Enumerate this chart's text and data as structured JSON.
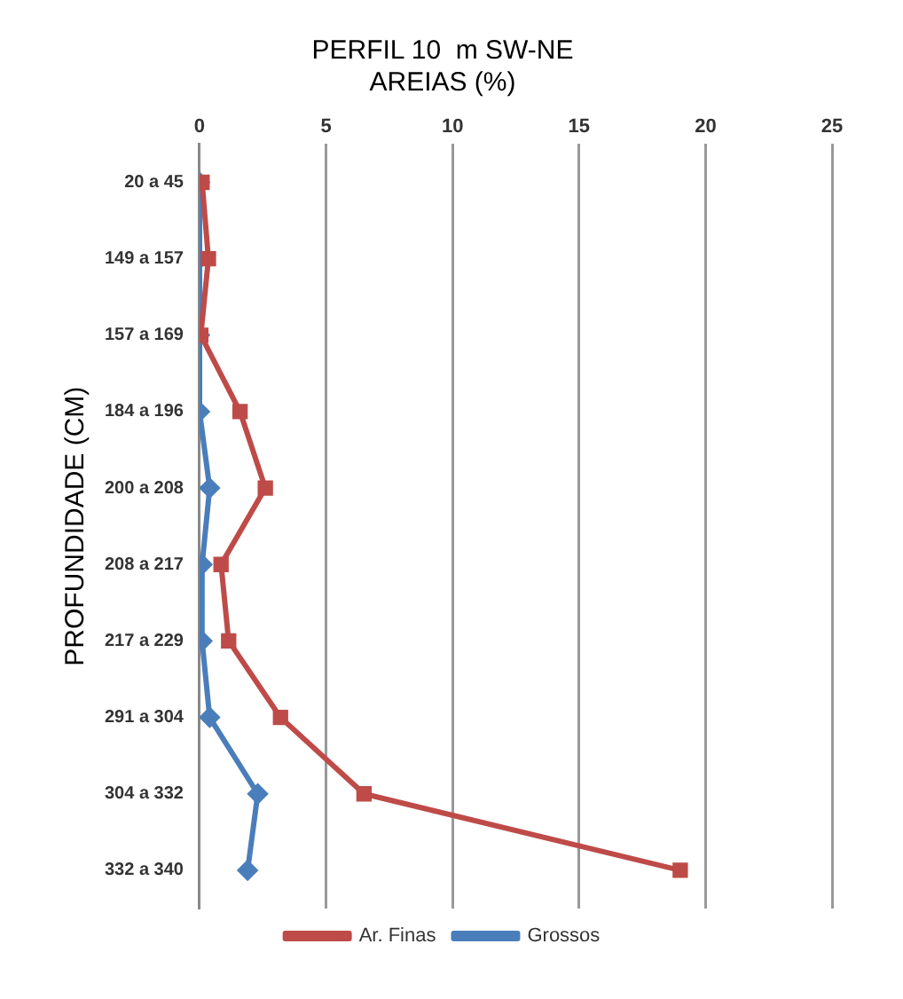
{
  "chart_data": {
    "type": "line",
    "orientation": "horizontal",
    "title": "PERFIL 10  m SW-NE",
    "subtitle": "AREIAS (%)",
    "ylabel": "PROFUNDIDADE (CM)",
    "categories": [
      "20 a 45",
      "149 a 157",
      "157 a 169",
      "184 a 196",
      "200 a 208",
      "208 a 217",
      "217 a 229",
      "291 a 304",
      "304 a 332",
      "332 a 340"
    ],
    "series": [
      {
        "name": "Grossos",
        "color": "#4a7ebb",
        "marker": "diamond",
        "values": [
          0,
          0,
          0,
          0,
          0.4,
          0.1,
          0.1,
          0.4,
          2.3,
          1.9
        ]
      },
      {
        "name": "Ar. Finas",
        "color": "#be4b48",
        "marker": "square",
        "values": [
          0.1,
          0.35,
          0.05,
          1.6,
          2.6,
          0.85,
          1.15,
          3.2,
          6.5,
          19.0
        ]
      }
    ],
    "xlim": [
      0,
      25
    ],
    "xticks": [
      0,
      5,
      10,
      15,
      20,
      25
    ],
    "grid": "x",
    "legend": "bottom",
    "line_style": "solid"
  }
}
